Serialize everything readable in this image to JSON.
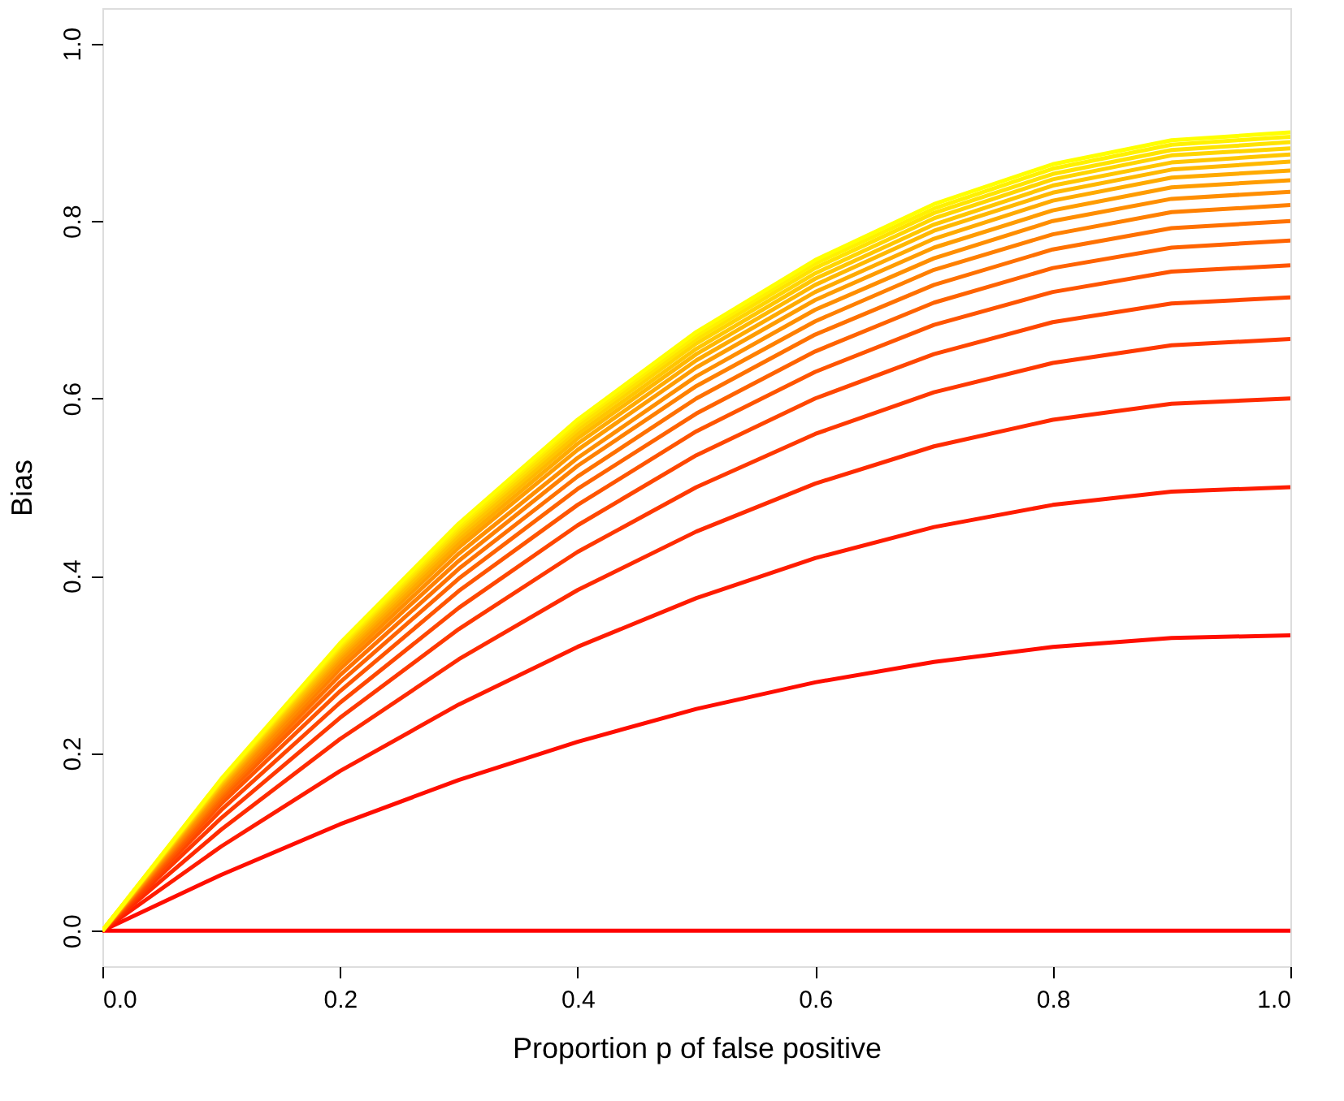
{
  "chart_data": {
    "type": "line",
    "xlabel": "Proportion p of false positive",
    "ylabel": "Bias",
    "x": [
      0,
      0.1,
      0.2,
      0.3,
      0.4,
      0.5,
      0.6,
      0.7,
      0.8,
      0.9,
      1.0
    ],
    "xlim": [
      0,
      1
    ],
    "ylim": [
      -0.04,
      1.04
    ],
    "xticks": [
      {
        "value": 0,
        "label": "0.0"
      },
      {
        "value": 0.2,
        "label": "0.2"
      },
      {
        "value": 0.4,
        "label": "0.4"
      },
      {
        "value": 0.6,
        "label": "0.6"
      },
      {
        "value": 0.8,
        "label": "0.8"
      },
      {
        "value": 1,
        "label": "1.0"
      }
    ],
    "yticks": [
      {
        "value": 0,
        "label": "0.0"
      },
      {
        "value": 0.2,
        "label": "0.2"
      },
      {
        "value": 0.4,
        "label": "0.4"
      },
      {
        "value": 0.6,
        "label": "0.6"
      },
      {
        "value": 0.8,
        "label": "0.8"
      },
      {
        "value": 1,
        "label": "1.0"
      }
    ],
    "grid": false,
    "legend": false,
    "marker": "none",
    "line_style": "solid",
    "series": [
      {
        "color": "#ff0000",
        "values": [
          0,
          0,
          0,
          0,
          0,
          0,
          0,
          0,
          0,
          0,
          0
        ]
      },
      {
        "color": "#ff0e00",
        "values": [
          0,
          0.063,
          0.12,
          0.17,
          0.213,
          0.25,
          0.28,
          0.303,
          0.32,
          0.33,
          0.333
        ]
      },
      {
        "color": "#ff1c00",
        "values": [
          0,
          0.095,
          0.18,
          0.255,
          0.32,
          0.375,
          0.42,
          0.455,
          0.48,
          0.495,
          0.5
        ]
      },
      {
        "color": "#ff2b00",
        "values": [
          0,
          0.114,
          0.216,
          0.306,
          0.384,
          0.45,
          0.504,
          0.546,
          0.576,
          0.594,
          0.6
        ]
      },
      {
        "color": "#ff3900",
        "values": [
          0,
          0.127,
          0.24,
          0.34,
          0.427,
          0.5,
          0.56,
          0.607,
          0.64,
          0.66,
          0.667
        ]
      },
      {
        "color": "#ff4700",
        "values": [
          0,
          0.136,
          0.257,
          0.364,
          0.457,
          0.536,
          0.6,
          0.65,
          0.686,
          0.707,
          0.714
        ]
      },
      {
        "color": "#ff5500",
        "values": [
          0,
          0.143,
          0.27,
          0.383,
          0.48,
          0.563,
          0.63,
          0.683,
          0.72,
          0.743,
          0.75
        ]
      },
      {
        "color": "#ff6300",
        "values": [
          0,
          0.148,
          0.28,
          0.397,
          0.498,
          0.583,
          0.653,
          0.708,
          0.747,
          0.77,
          0.778
        ]
      },
      {
        "color": "#ff7100",
        "values": [
          0,
          0.152,
          0.288,
          0.408,
          0.512,
          0.6,
          0.672,
          0.728,
          0.768,
          0.792,
          0.8
        ]
      },
      {
        "color": "#ff8000",
        "values": [
          0,
          0.155,
          0.295,
          0.417,
          0.524,
          0.614,
          0.687,
          0.745,
          0.785,
          0.81,
          0.818
        ]
      },
      {
        "color": "#ff8e00",
        "values": [
          0,
          0.158,
          0.3,
          0.425,
          0.533,
          0.625,
          0.7,
          0.758,
          0.8,
          0.825,
          0.833
        ]
      },
      {
        "color": "#ff9c00",
        "values": [
          0,
          0.161,
          0.305,
          0.432,
          0.542,
          0.635,
          0.711,
          0.77,
          0.812,
          0.838,
          0.846
        ]
      },
      {
        "color": "#ffaa00",
        "values": [
          0,
          0.163,
          0.309,
          0.437,
          0.549,
          0.643,
          0.72,
          0.78,
          0.823,
          0.849,
          0.857
        ]
      },
      {
        "color": "#ffb800",
        "values": [
          0,
          0.165,
          0.312,
          0.442,
          0.555,
          0.65,
          0.728,
          0.789,
          0.832,
          0.858,
          0.867
        ]
      },
      {
        "color": "#ffc600",
        "values": [
          0,
          0.166,
          0.315,
          0.446,
          0.56,
          0.656,
          0.735,
          0.796,
          0.84,
          0.866,
          0.875
        ]
      },
      {
        "color": "#ffd500",
        "values": [
          0,
          0.168,
          0.318,
          0.45,
          0.565,
          0.662,
          0.741,
          0.803,
          0.847,
          0.874,
          0.882
        ]
      },
      {
        "color": "#ffe300",
        "values": [
          0,
          0.169,
          0.32,
          0.453,
          0.569,
          0.667,
          0.747,
          0.809,
          0.853,
          0.88,
          0.889
        ]
      },
      {
        "color": "#fff100",
        "values": [
          0,
          0.17,
          0.322,
          0.456,
          0.573,
          0.671,
          0.752,
          0.814,
          0.859,
          0.886,
          0.895
        ]
      },
      {
        "color": "#ffff00",
        "values": [
          0,
          0.171,
          0.324,
          0.459,
          0.576,
          0.675,
          0.756,
          0.819,
          0.864,
          0.891,
          0.9
        ]
      }
    ]
  }
}
